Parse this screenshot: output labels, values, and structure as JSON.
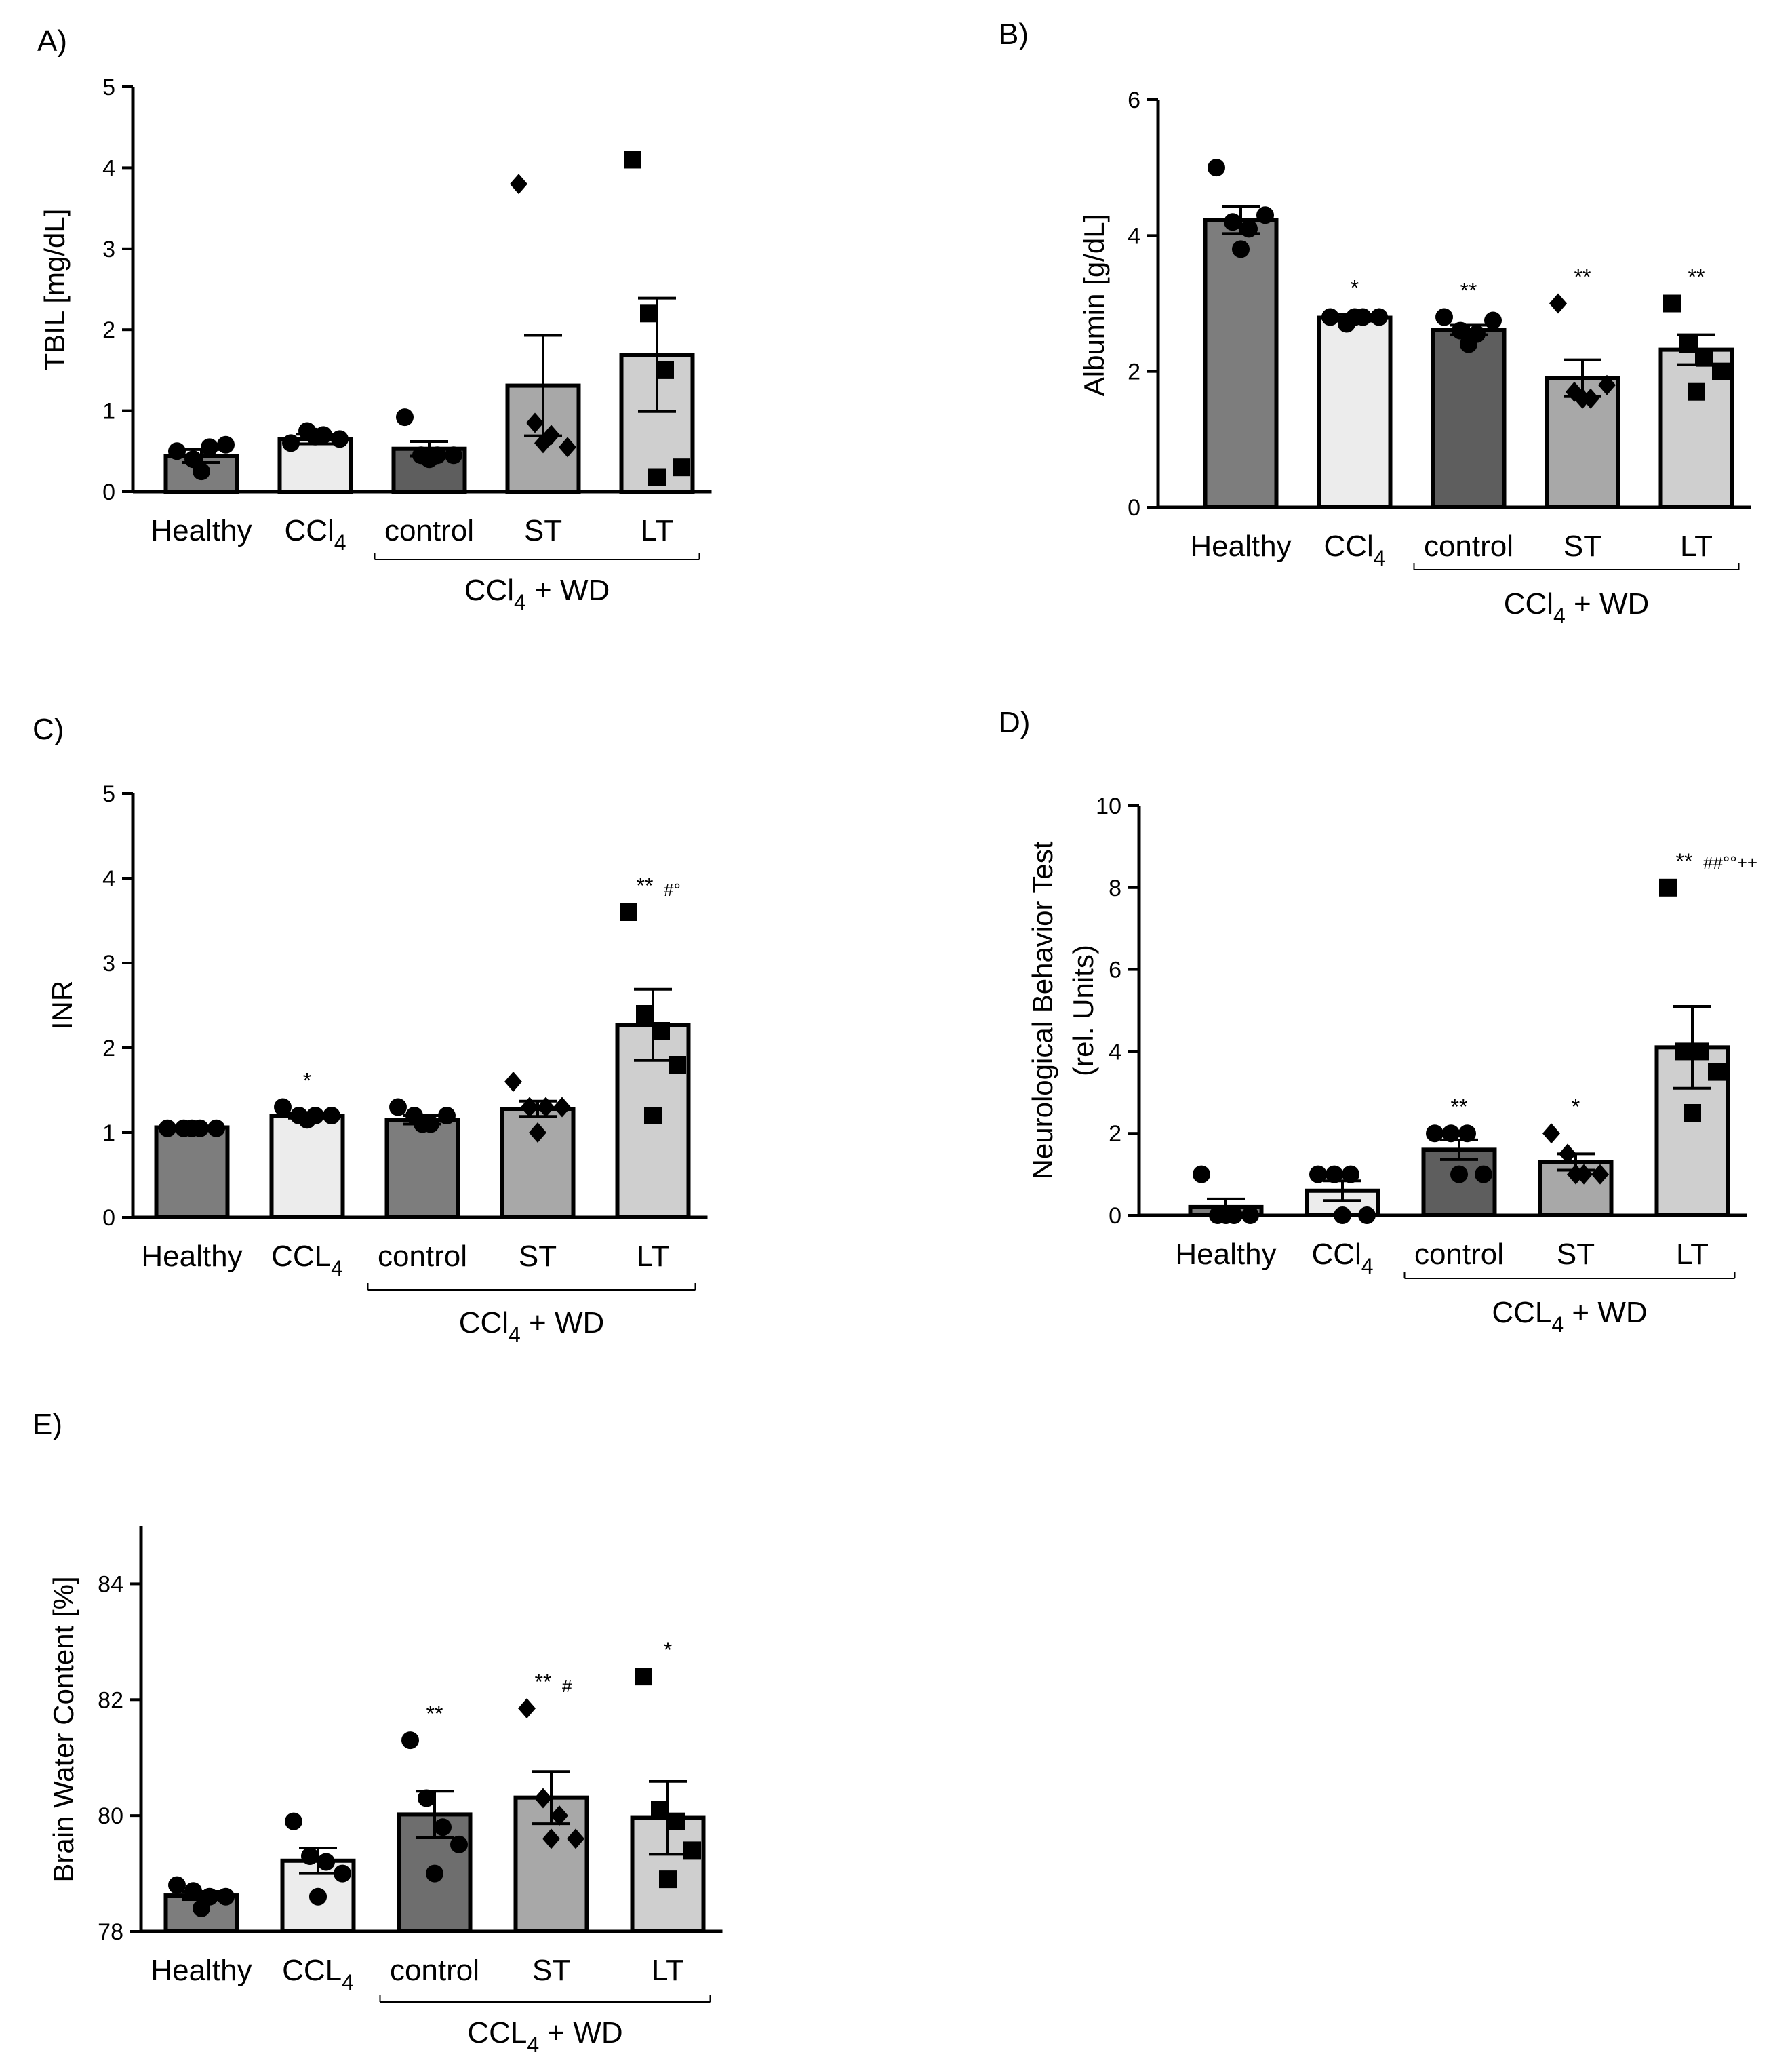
{
  "chart_data": [
    {
      "id": "A",
      "panel_label": "A)",
      "type": "bar",
      "ylabel": "TBIL [mg/dL]",
      "ylim": [
        0,
        5
      ],
      "yticks": [
        "0",
        "1",
        "2",
        "3",
        "4",
        "5"
      ],
      "categories": [
        {
          "base": "Healthy",
          "sub": ""
        },
        {
          "base": "CCl",
          "sub": "4"
        },
        {
          "base": "control",
          "sub": ""
        },
        {
          "base": "ST",
          "sub": ""
        },
        {
          "base": "LT",
          "sub": ""
        }
      ],
      "group": {
        "base": "CCl",
        "sub": "4",
        "rest": " + WD"
      },
      "bar_colors": [
        "#7d7d7d",
        "#ececec",
        "#5e5e5e",
        "#a8a8a8",
        "#cfcfcf"
      ],
      "means": [
        0.44,
        0.65,
        0.53,
        1.31,
        1.69
      ],
      "sem": [
        0.08,
        0.06,
        0.09,
        0.62,
        0.7
      ],
      "points": [
        [
          0.5,
          0.4,
          0.55,
          0.58,
          0.25
        ],
        [
          0.6,
          0.75,
          0.7,
          0.65,
          0.68
        ],
        [
          0.92,
          0.45,
          0.45,
          0.45,
          0.4
        ],
        [
          3.8,
          0.85,
          0.7,
          0.55,
          0.6
        ],
        [
          4.1,
          2.2,
          1.5,
          0.3,
          0.18
        ]
      ],
      "markers": [
        "circle",
        "circle",
        "circle",
        "diamond",
        "square"
      ],
      "significance": [
        "",
        "",
        "",
        "",
        ""
      ]
    },
    {
      "id": "B",
      "panel_label": "B)",
      "type": "bar",
      "ylabel": "Albumin [g/dL]",
      "ylim": [
        0,
        6
      ],
      "yticks": [
        "0",
        "2",
        "4",
        "6"
      ],
      "categories": [
        {
          "base": "Healthy",
          "sub": ""
        },
        {
          "base": "CCl",
          "sub": "4"
        },
        {
          "base": "control",
          "sub": ""
        },
        {
          "base": "ST",
          "sub": ""
        },
        {
          "base": "LT",
          "sub": ""
        }
      ],
      "group": {
        "base": "CCl",
        "sub": "4",
        "rest": " + WD"
      },
      "bar_colors": [
        "#7d7d7d",
        "#ececec",
        "#5e5e5e",
        "#a8a8a8",
        "#cfcfcf"
      ],
      "means": [
        4.23,
        2.79,
        2.61,
        1.9,
        2.32
      ],
      "sem": [
        0.2,
        0.05,
        0.07,
        0.27,
        0.22
      ],
      "points": [
        [
          5.0,
          4.2,
          4.1,
          4.3,
          3.8
        ],
        [
          2.8,
          2.7,
          2.8,
          2.8,
          2.8
        ],
        [
          2.8,
          2.6,
          2.55,
          2.75,
          2.4
        ],
        [
          3.0,
          1.7,
          1.6,
          1.8,
          1.6
        ],
        [
          3.0,
          2.4,
          2.2,
          2.0,
          1.7
        ]
      ],
      "markers": [
        "circle",
        "circle",
        "circle",
        "diamond",
        "square"
      ],
      "significance": [
        "",
        "*",
        "**",
        "**",
        "**"
      ]
    },
    {
      "id": "C",
      "panel_label": "C)",
      "type": "bar",
      "ylabel": "INR",
      "ylim": [
        0,
        5
      ],
      "yticks": [
        "0",
        "1",
        "2",
        "3",
        "4",
        "5"
      ],
      "categories": [
        {
          "base": "Healthy",
          "sub": ""
        },
        {
          "base": "CCL",
          "sub": "4"
        },
        {
          "base": "control",
          "sub": ""
        },
        {
          "base": "ST",
          "sub": ""
        },
        {
          "base": "LT",
          "sub": ""
        }
      ],
      "group": {
        "base": "CCl",
        "sub": "4",
        "rest": " + WD"
      },
      "bar_colors": [
        "#7d7d7d",
        "#ececec",
        "#7d7d7d",
        "#a8a8a8",
        "#cfcfcf"
      ],
      "means": [
        1.06,
        1.2,
        1.15,
        1.28,
        2.27
      ],
      "sem": [
        0.01,
        0.03,
        0.05,
        0.09,
        0.42
      ],
      "points": [
        [
          1.05,
          1.05,
          1.05,
          1.05,
          1.05
        ],
        [
          1.3,
          1.2,
          1.2,
          1.2,
          1.15
        ],
        [
          1.3,
          1.2,
          1.1,
          1.2,
          1.1
        ],
        [
          1.6,
          1.3,
          1.3,
          1.3,
          1.0
        ],
        [
          3.6,
          2.4,
          2.2,
          1.8,
          1.2
        ]
      ],
      "markers": [
        "circle",
        "circle",
        "circle",
        "diamond",
        "square"
      ],
      "significance": [
        "",
        "*",
        "",
        "",
        "**"
      ],
      "significance_extra": [
        "",
        "",
        "",
        "",
        "#°"
      ]
    },
    {
      "id": "D",
      "panel_label": "D)",
      "type": "bar",
      "ylabel": "Neurological Behavior Test",
      "ylabel2": "(rel. Units)",
      "ylim": [
        0,
        10
      ],
      "yticks": [
        "0",
        "2",
        "4",
        "6",
        "8",
        "10"
      ],
      "categories": [
        {
          "base": "Healthy",
          "sub": ""
        },
        {
          "base": "CCl",
          "sub": "4"
        },
        {
          "base": "control",
          "sub": ""
        },
        {
          "base": "ST",
          "sub": ""
        },
        {
          "base": "LT",
          "sub": ""
        }
      ],
      "group": {
        "base": "CCL",
        "sub": "4",
        "rest": " + WD"
      },
      "bar_colors": [
        "#7d7d7d",
        "#ececec",
        "#5e5e5e",
        "#a8a8a8",
        "#cfcfcf"
      ],
      "means": [
        0.2,
        0.6,
        1.6,
        1.3,
        4.1
      ],
      "sem": [
        0.2,
        0.24,
        0.24,
        0.2,
        1.0
      ],
      "points": [
        [
          1.0,
          0,
          0,
          0,
          0
        ],
        [
          1.0,
          1.0,
          1.0,
          0,
          0
        ],
        [
          2.0,
          2.0,
          2.0,
          1.0,
          1.0
        ],
        [
          2.0,
          1.5,
          1.0,
          1.0,
          1.0
        ],
        [
          8.0,
          4.0,
          4.0,
          3.5,
          2.5
        ]
      ],
      "markers": [
        "circle",
        "circle",
        "circle",
        "diamond",
        "square"
      ],
      "significance": [
        "",
        "",
        "**",
        "*",
        "**"
      ],
      "significance_extra": [
        "",
        "",
        "",
        "",
        "##°°++"
      ]
    },
    {
      "id": "E",
      "panel_label": "E)",
      "type": "bar",
      "ylabel": "Brain Water Content [%]",
      "ylim": [
        78,
        85
      ],
      "yticks": [
        "78",
        "80",
        "82",
        "84"
      ],
      "categories": [
        {
          "base": "Healthy",
          "sub": ""
        },
        {
          "base": "CCL",
          "sub": "4"
        },
        {
          "base": "control",
          "sub": ""
        },
        {
          "base": "ST",
          "sub": ""
        },
        {
          "base": "LT",
          "sub": ""
        }
      ],
      "group": {
        "base": "CCL",
        "sub": "4",
        "rest": " + WD"
      },
      "bar_colors": [
        "#7d7d7d",
        "#ececec",
        "#6e6e6e",
        "#a8a8a8",
        "#cfcfcf"
      ],
      "means": [
        78.62,
        79.22,
        80.02,
        80.31,
        79.96
      ],
      "sem": [
        0.07,
        0.22,
        0.4,
        0.45,
        0.63
      ],
      "points": [
        [
          78.8,
          78.7,
          78.6,
          78.6,
          78.4
        ],
        [
          79.9,
          79.3,
          79.2,
          79.0,
          78.6
        ],
        [
          81.3,
          80.3,
          79.8,
          79.5,
          79.0
        ],
        [
          81.85,
          80.3,
          80.0,
          79.6,
          79.6
        ],
        [
          82.4,
          80.1,
          79.9,
          79.4,
          78.9
        ]
      ],
      "markers": [
        "circle",
        "circle",
        "circle",
        "diamond",
        "square"
      ],
      "significance": [
        "",
        "",
        "**",
        "**",
        "*"
      ],
      "significance_extra": [
        "",
        "",
        "",
        "#",
        ""
      ]
    }
  ]
}
